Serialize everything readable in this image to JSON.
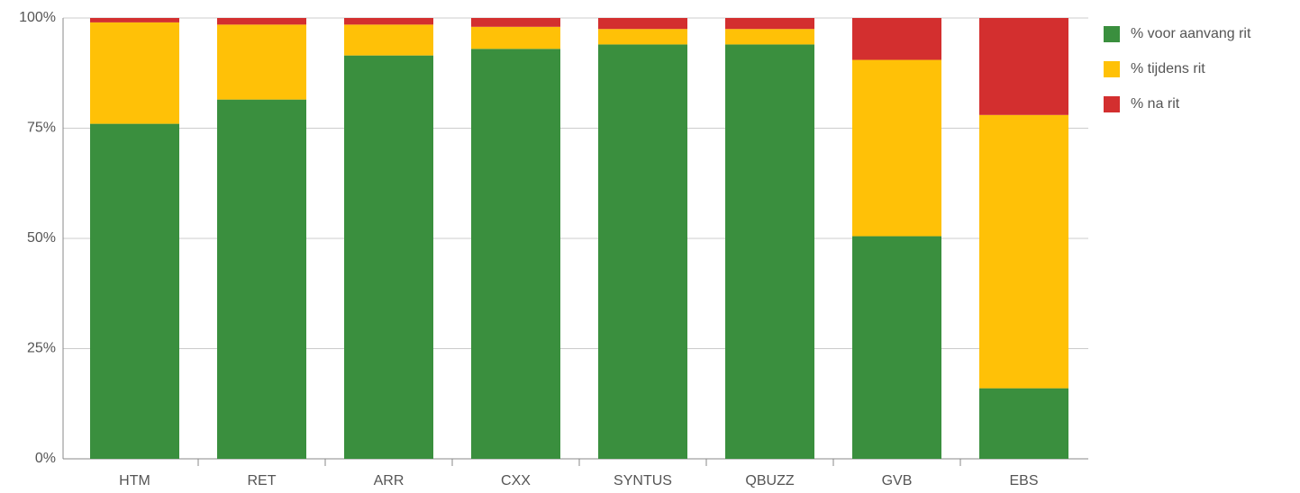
{
  "chart_data": {
    "type": "stacked_bar",
    "categories": [
      "HTM",
      "RET",
      "ARR",
      "CXX",
      "SYNTUS",
      "QBUZZ",
      "GVB",
      "EBS"
    ],
    "series": [
      {
        "name": "% voor aanvang rit",
        "color": "#3a8f3e",
        "values": [
          76,
          81.5,
          91.5,
          93,
          94,
          94,
          50.5,
          16
        ]
      },
      {
        "name": "% tijdens rit",
        "color": "#ffc107",
        "values": [
          23,
          17,
          7,
          5,
          3.5,
          3.5,
          40,
          62
        ]
      },
      {
        "name": "% na rit",
        "color": "#d32f2f",
        "values": [
          1,
          1.5,
          1.5,
          2,
          2.5,
          2.5,
          9.5,
          22
        ]
      }
    ],
    "ylim": [
      0,
      100
    ],
    "yticks": [
      {
        "value": 0,
        "label": "0%"
      },
      {
        "value": 25,
        "label": "25%"
      },
      {
        "value": 50,
        "label": "50%"
      },
      {
        "value": 75,
        "label": "75%"
      },
      {
        "value": 100,
        "label": "100%"
      }
    ],
    "grid": true,
    "legend": "right"
  }
}
